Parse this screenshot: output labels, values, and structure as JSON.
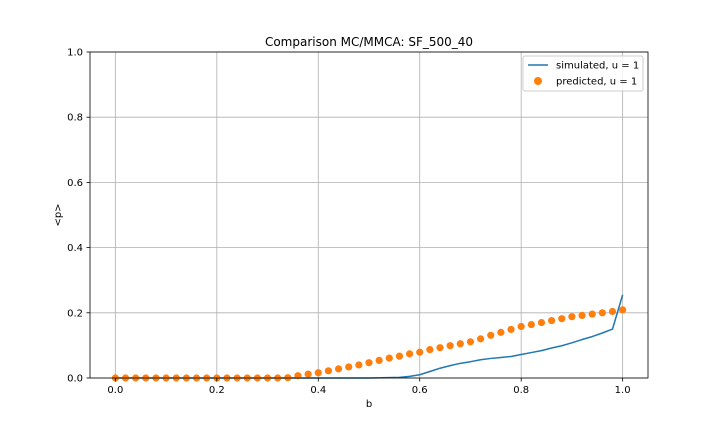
{
  "chart_data": {
    "type": "line",
    "title": "Comparison MC/MMCA: SF_500_40",
    "xlabel": "b",
    "ylabel": "<p>",
    "xlim": [
      -0.05,
      1.05
    ],
    "ylim": [
      0.0,
      1.0
    ],
    "x_ticks": [
      0.0,
      0.2,
      0.4,
      0.6,
      0.8,
      1.0
    ],
    "x_tick_labels": [
      "0.0",
      "0.2",
      "0.4",
      "0.6",
      "0.8",
      "1.0"
    ],
    "y_ticks": [
      0.0,
      0.2,
      0.4,
      0.6,
      0.8,
      1.0
    ],
    "y_tick_labels": [
      "0.0",
      "0.2",
      "0.4",
      "0.6",
      "0.8",
      "1.0"
    ],
    "grid": true,
    "legend_position": "top-right",
    "series": [
      {
        "name": "simulated, u = 1",
        "style": "line",
        "color": "#1f77b4",
        "x": [
          0.0,
          0.4,
          0.5,
          0.56,
          0.58,
          0.6,
          0.62,
          0.64,
          0.66,
          0.68,
          0.7,
          0.72,
          0.74,
          0.76,
          0.78,
          0.8,
          0.82,
          0.84,
          0.86,
          0.88,
          0.9,
          0.92,
          0.94,
          0.96,
          0.98,
          1.0
        ],
        "y": [
          0.0,
          0.0,
          0.0,
          0.002,
          0.005,
          0.01,
          0.02,
          0.03,
          0.038,
          0.045,
          0.05,
          0.056,
          0.06,
          0.063,
          0.066,
          0.072,
          0.078,
          0.084,
          0.092,
          0.099,
          0.108,
          0.118,
          0.127,
          0.138,
          0.15,
          0.255
        ]
      },
      {
        "name": "predicted, u = 1",
        "style": "scatter",
        "color": "#ff7f0e",
        "x": [
          0.0,
          0.02,
          0.04,
          0.06,
          0.08,
          0.1,
          0.12,
          0.14,
          0.16,
          0.18,
          0.2,
          0.22,
          0.24,
          0.26,
          0.28,
          0.3,
          0.32,
          0.34,
          0.36,
          0.38,
          0.4,
          0.42,
          0.44,
          0.46,
          0.48,
          0.5,
          0.52,
          0.54,
          0.56,
          0.58,
          0.6,
          0.62,
          0.64,
          0.66,
          0.68,
          0.7,
          0.72,
          0.74,
          0.76,
          0.78,
          0.8,
          0.82,
          0.84,
          0.86,
          0.88,
          0.9,
          0.92,
          0.94,
          0.96,
          0.98,
          1.0
        ],
        "y": [
          0.0,
          0.0,
          0.0,
          0.0,
          0.0,
          0.0,
          0.0,
          0.0,
          0.0,
          0.0,
          0.0,
          0.0,
          0.0,
          0.0,
          0.0,
          0.0,
          0.0,
          0.001,
          0.007,
          0.012,
          0.016,
          0.022,
          0.028,
          0.034,
          0.04,
          0.047,
          0.054,
          0.061,
          0.067,
          0.074,
          0.079,
          0.087,
          0.093,
          0.099,
          0.105,
          0.111,
          0.12,
          0.131,
          0.14,
          0.149,
          0.158,
          0.164,
          0.17,
          0.176,
          0.182,
          0.188,
          0.192,
          0.196,
          0.2,
          0.204,
          0.209
        ]
      }
    ]
  }
}
